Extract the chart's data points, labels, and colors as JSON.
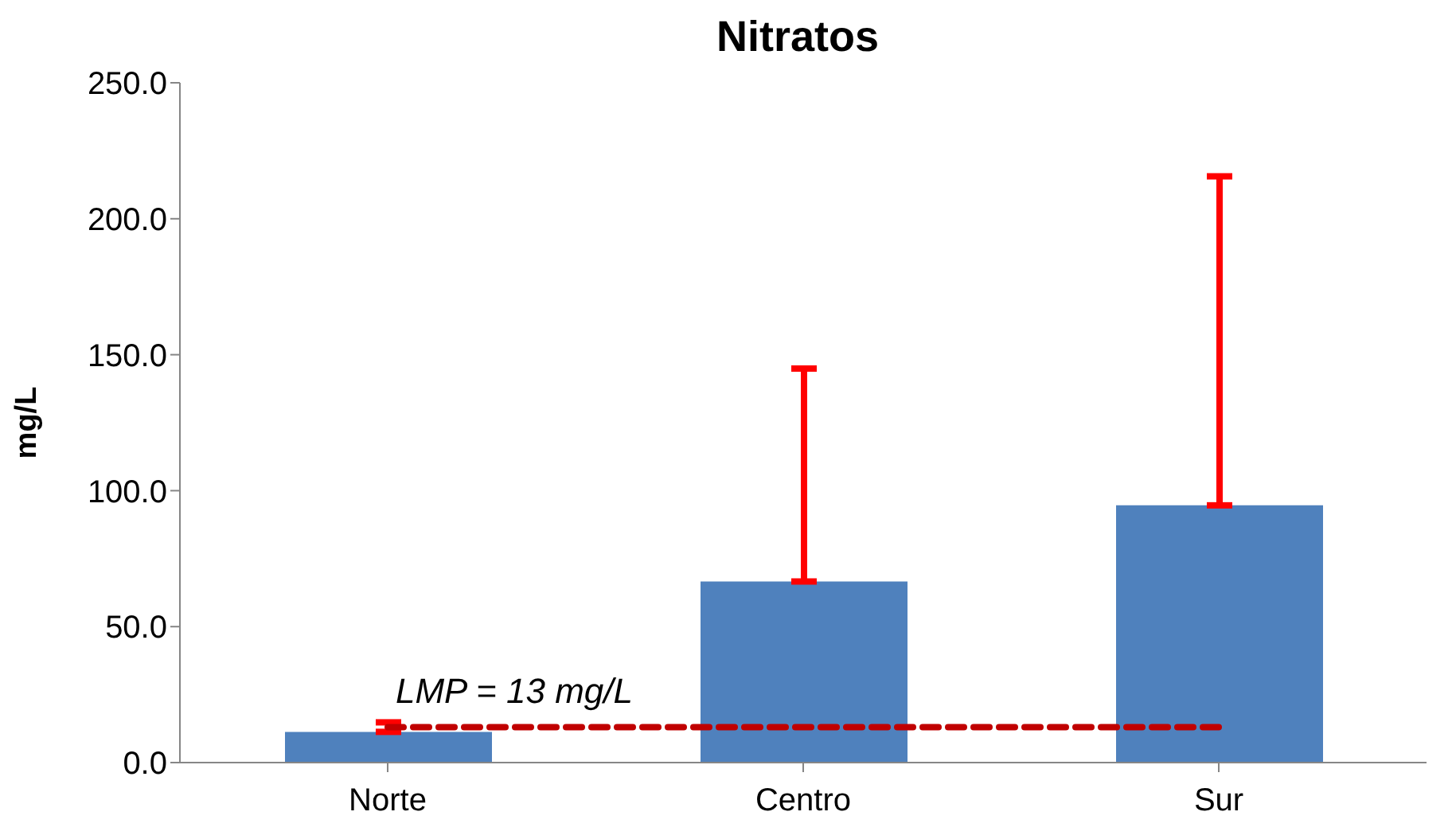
{
  "chart_data": {
    "type": "bar",
    "title": "Nitratos",
    "ylabel": "mg/L",
    "categories": [
      "Norte",
      "Centro",
      "Sur"
    ],
    "series": [
      {
        "color": "#4f81bd",
        "values": [
          11.3,
          66.6,
          94.6
        ],
        "errors": [
          [
            11.3,
            14.8
          ],
          [
            66.6,
            144.9
          ],
          [
            94.6,
            215.6
          ]
        ]
      }
    ],
    "ylim": [
      0,
      250
    ],
    "yticks": [
      {
        "value": 0,
        "label": "0.0"
      },
      {
        "value": 50,
        "label": "50.0"
      },
      {
        "value": 100,
        "label": "100.0"
      },
      {
        "value": 150,
        "label": "150.0"
      },
      {
        "value": 200,
        "label": "200.0"
      },
      {
        "value": 250,
        "label": "250.0"
      }
    ],
    "ref_lines": [
      {
        "axis": "y",
        "value": 13,
        "label": "LMP =  13 mg/L",
        "color": "#c00000",
        "line_style": "dashed"
      }
    ],
    "grid": false,
    "legend": false
  }
}
